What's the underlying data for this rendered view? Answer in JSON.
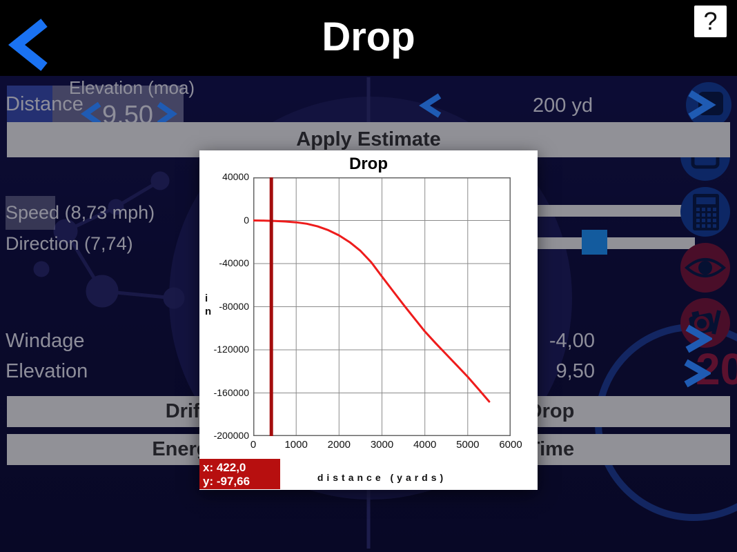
{
  "header": {
    "title": "Drop",
    "help_label": "?"
  },
  "background": {
    "elevation_moa_label": "Elevation (moa)",
    "elevation_moa_value": "9,50",
    "distance_label": "Distance",
    "distance_value": "200 yd",
    "apply_estimate_label": "Apply Estimate",
    "speed_label": "Speed (8,73 mph)",
    "direction_label": "Direction (7,74)",
    "windage_label": "Windage",
    "windage_value": "-4,00",
    "elevation_label": "Elevation",
    "elevation_value": "9,50",
    "decor_number": "20",
    "buttons": {
      "drift": "Drift",
      "drop": "Drop",
      "energy": "Energy",
      "time": "Time"
    },
    "icon_names": [
      "next-screen-icon",
      "window-icon",
      "calculator-icon",
      "eye-icon",
      "camera-edit-icon"
    ]
  },
  "popup": {
    "title": "Drop",
    "tooltip_x": "x: 422,0",
    "tooltip_y": "y: -97,66"
  },
  "chart_data": {
    "type": "line",
    "title": "Drop",
    "xlabel": "distance (yards)",
    "ylabel": "in",
    "xlim": [
      0,
      6000
    ],
    "ylim": [
      -200000,
      40000
    ],
    "x_ticks": [
      0,
      1000,
      2000,
      3000,
      4000,
      5000,
      6000
    ],
    "y_ticks": [
      40000,
      0,
      -40000,
      -80000,
      -120000,
      -160000,
      -200000
    ],
    "grid": true,
    "legend": false,
    "series": [
      {
        "name": "drop",
        "color": "#ee1c1c",
        "x": [
          0,
          250,
          500,
          750,
          1000,
          1250,
          1500,
          1750,
          2000,
          2250,
          2500,
          2750,
          3000,
          3250,
          3500,
          3750,
          4000,
          4250,
          4500,
          4750,
          5000,
          5250,
          5500
        ],
        "y": [
          0,
          -150,
          -450,
          -950,
          -1700,
          -3100,
          -5500,
          -9000,
          -13800,
          -20200,
          -28200,
          -38800,
          -52000,
          -65000,
          -78000,
          -90500,
          -103000,
          -113800,
          -124200,
          -134600,
          -145000,
          -156500,
          -168000
        ]
      }
    ],
    "cursor": {
      "x": 422.0,
      "color": "#a30c0c",
      "readout_x": "x: 422,0",
      "readout_y": "y: -97,66"
    }
  },
  "colors": {
    "accent_blue": "#2e86ff",
    "bar_gray": "#d6d6d6",
    "circle_blue": "#143a8c",
    "circle_maroon": "#6e1534",
    "tooltip_red": "#b70f0f",
    "curve_red": "#ee1c1c",
    "cursor_red": "#a30c0c"
  }
}
